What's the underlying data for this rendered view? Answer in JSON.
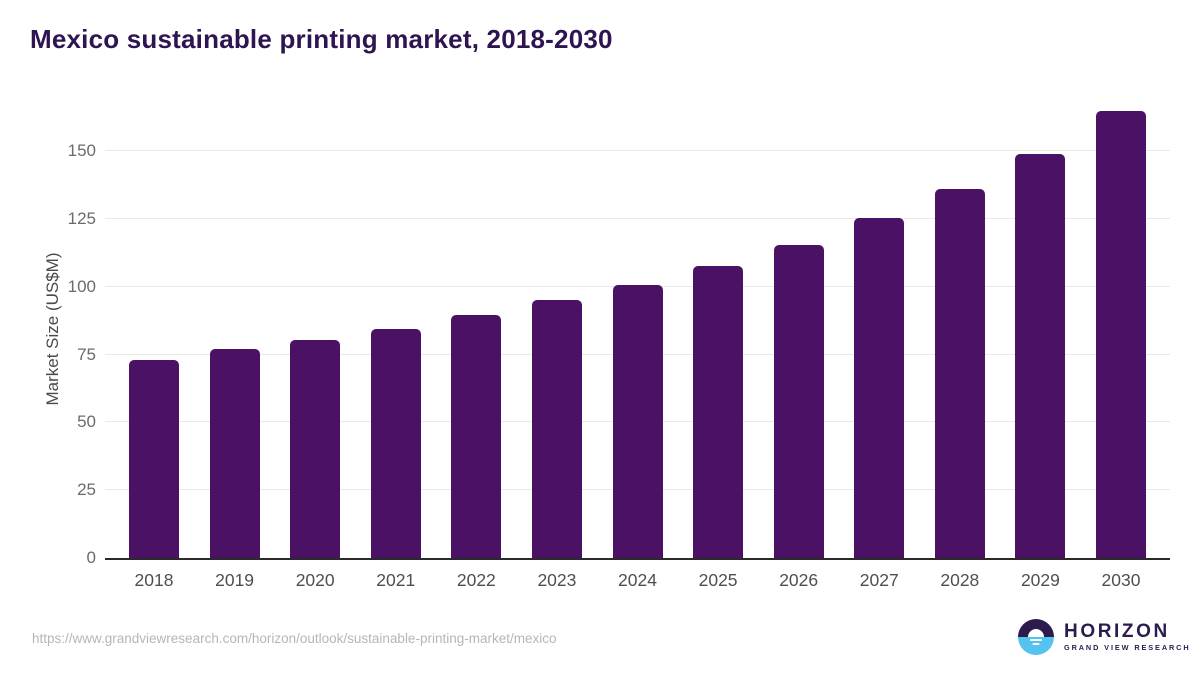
{
  "title": "Mexico sustainable printing market, 2018-2030",
  "chart_data": {
    "type": "bar",
    "title": "Mexico sustainable printing market, 2018-2030",
    "categories": [
      "2018",
      "2019",
      "2020",
      "2021",
      "2022",
      "2023",
      "2024",
      "2025",
      "2026",
      "2027",
      "2028",
      "2029",
      "2030"
    ],
    "values": [
      73,
      77,
      80.5,
      84.5,
      89.5,
      95,
      100.5,
      107.5,
      115.5,
      125.5,
      136,
      149,
      165
    ],
    "xlabel": "",
    "ylabel": "Market Size (US$M)",
    "ylim": [
      0,
      170
    ],
    "yticks": [
      0,
      25,
      50,
      75,
      100,
      125,
      150
    ],
    "grid": "horizontal",
    "legend": "none",
    "bar_color": "#4a1164"
  },
  "colors": {
    "title": "#2e1450",
    "bar": "#4a1164",
    "gridline": "#e9e9e9",
    "axis_line": "#2a2a2a",
    "tick_text": "#6b6b6b",
    "logo_purple": "#2d1b4e",
    "logo_blue": "#54c3f0"
  },
  "footer": {
    "source_url": "https://www.grandviewresearch.com/horizon/outlook/sustainable-printing-market/mexico",
    "logo": {
      "brand": "HORIZON",
      "sub_brand": "GRAND VIEW RESEARCH"
    }
  }
}
